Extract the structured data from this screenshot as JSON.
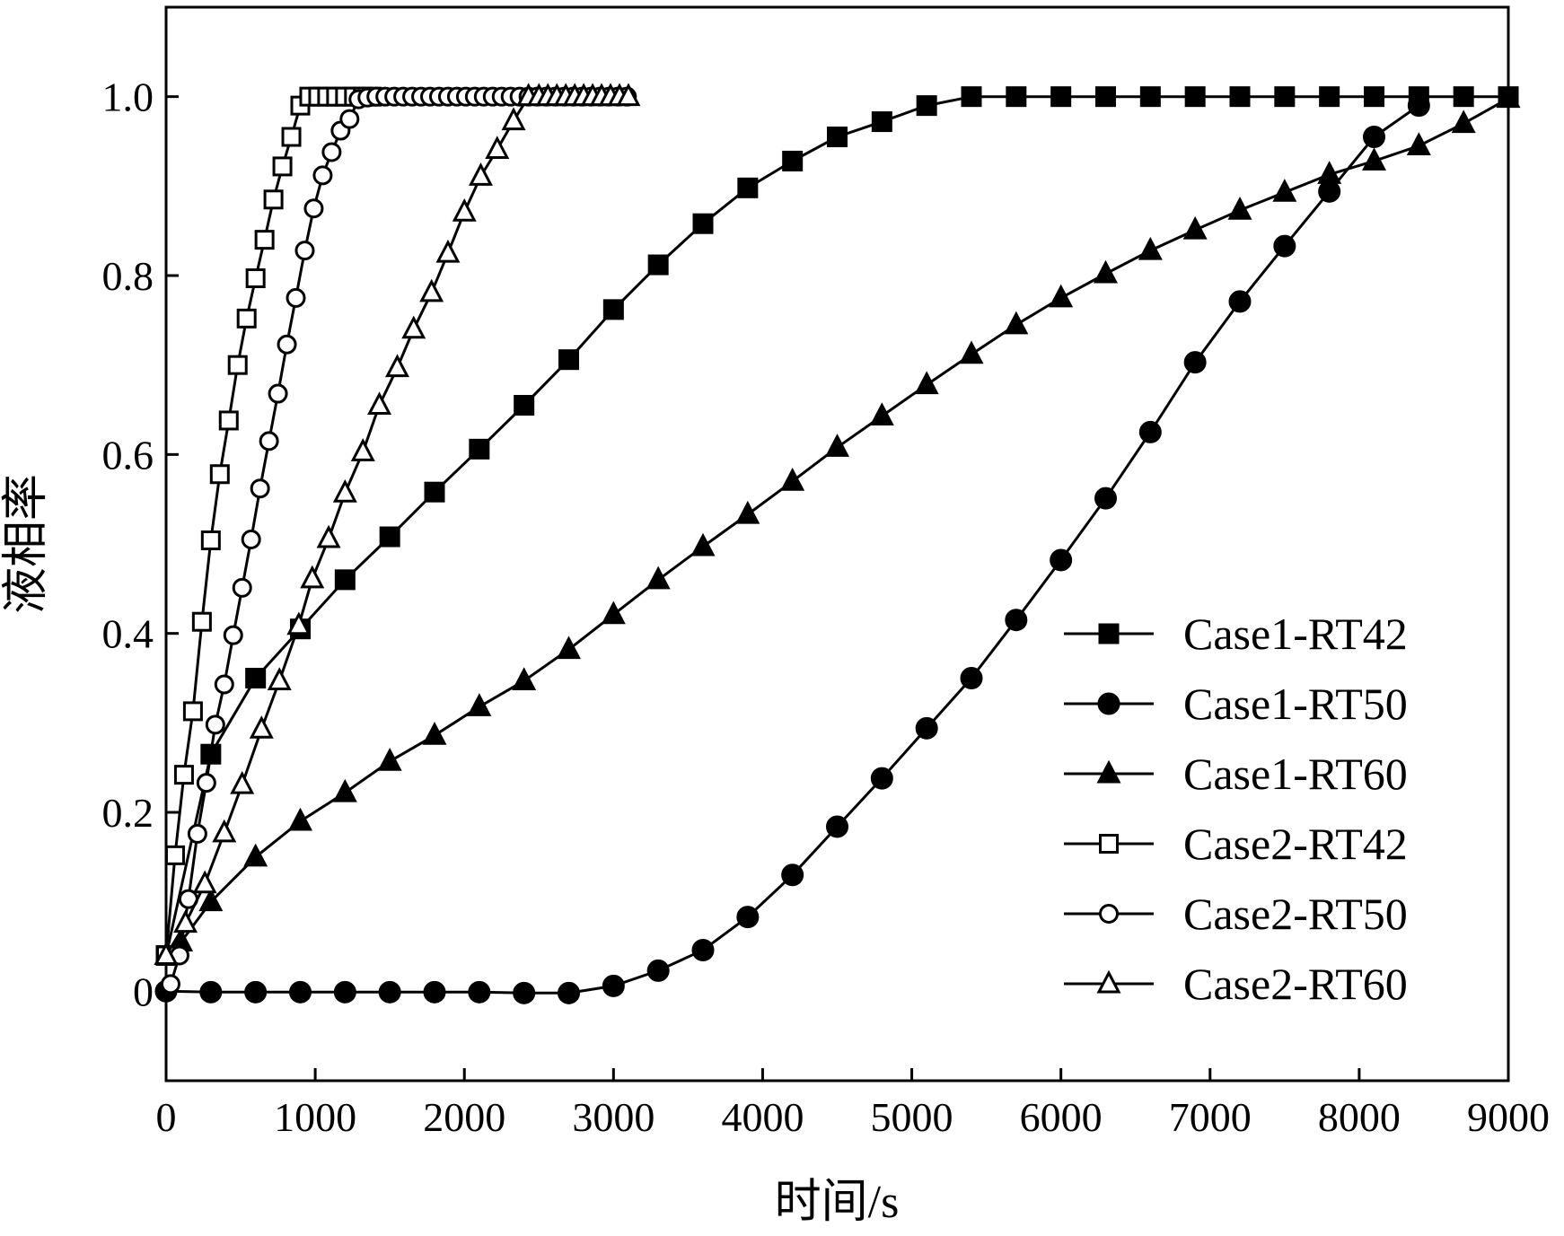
{
  "chart_data": {
    "type": "line",
    "xlabel": "时间/s",
    "ylabel": "液相率",
    "xlim": [
      0,
      9000
    ],
    "ylim": [
      -0.1,
      1.1
    ],
    "x_ticks": [
      0,
      1000,
      2000,
      3000,
      4000,
      5000,
      6000,
      7000,
      8000,
      9000
    ],
    "x_tick_labels": [
      "0",
      "1000",
      "2000",
      "3000",
      "4000",
      "5000",
      "6000",
      "7000",
      "8000",
      "9000"
    ],
    "y_ticks": [
      0,
      0.2,
      0.4,
      0.6,
      0.8,
      1.0
    ],
    "y_tick_labels": [
      "0",
      "0.2",
      "0.4",
      "0.6",
      "0.8",
      "1.0"
    ],
    "grid": false,
    "legend_position": "bottom-right",
    "series": [
      {
        "name": "Case1-RT42",
        "marker": "square-filled",
        "x": [
          0,
          300,
          600,
          900,
          1200,
          1500,
          1800,
          2100,
          2400,
          2700,
          3000,
          3300,
          3600,
          3900,
          4200,
          4500,
          4800,
          5100,
          5400,
          5700,
          6000,
          6300,
          6600,
          6900,
          7200,
          7500,
          7800,
          8100,
          8400,
          8700,
          9000
        ],
        "y": [
          0.04,
          0.265,
          0.35,
          0.405,
          0.46,
          0.508,
          0.558,
          0.606,
          0.655,
          0.706,
          0.762,
          0.812,
          0.858,
          0.898,
          0.928,
          0.955,
          0.972,
          0.99,
          1.0,
          1.0,
          1.0,
          1.0,
          1.0,
          1.0,
          1.0,
          1.0,
          1.0,
          1.0,
          1.0,
          1.0,
          1.0
        ]
      },
      {
        "name": "Case1-RT50",
        "marker": "circle-filled",
        "x": [
          0,
          300,
          600,
          900,
          1200,
          1500,
          1800,
          2100,
          2400,
          2700,
          3000,
          3300,
          3600,
          3900,
          4200,
          4500,
          4800,
          5100,
          5400,
          5700,
          6000,
          6300,
          6600,
          6900,
          7200,
          7500,
          7800,
          8100,
          8400
        ],
        "y": [
          0.0,
          -0.001,
          -0.001,
          -0.001,
          -0.001,
          -0.001,
          -0.001,
          -0.001,
          -0.002,
          -0.002,
          0.006,
          0.023,
          0.046,
          0.083,
          0.13,
          0.184,
          0.238,
          0.294,
          0.35,
          0.415,
          0.482,
          0.551,
          0.625,
          0.703,
          0.771,
          0.833,
          0.894,
          0.955,
          0.99
        ]
      },
      {
        "name": "Case1-RT60",
        "marker": "triangle-filled",
        "x": [
          0,
          100,
          300,
          600,
          900,
          1200,
          1500,
          1800,
          2100,
          2400,
          2700,
          3000,
          3300,
          3600,
          3900,
          4200,
          4500,
          4800,
          5100,
          5400,
          5700,
          6000,
          6300,
          6600,
          6900,
          7200,
          7500,
          7800,
          8100,
          8400,
          8700,
          9000
        ],
        "y": [
          0.04,
          0.055,
          0.1,
          0.15,
          0.19,
          0.222,
          0.257,
          0.286,
          0.318,
          0.347,
          0.382,
          0.421,
          0.46,
          0.497,
          0.533,
          0.57,
          0.608,
          0.643,
          0.678,
          0.712,
          0.745,
          0.775,
          0.802,
          0.828,
          0.851,
          0.873,
          0.893,
          0.913,
          0.928,
          0.945,
          0.97,
          0.998
        ]
      },
      {
        "name": "Case2-RT42",
        "marker": "square-open",
        "x": [
          0,
          60,
          120,
          180,
          240,
          300,
          360,
          420,
          480,
          540,
          600,
          660,
          720,
          780,
          840,
          900,
          960,
          1020,
          1080,
          1140,
          1200,
          1260,
          1320,
          1380
        ],
        "y": [
          0.04,
          0.152,
          0.242,
          0.313,
          0.413,
          0.504,
          0.578,
          0.638,
          0.7,
          0.752,
          0.797,
          0.84,
          0.885,
          0.922,
          0.955,
          0.99,
          1.0,
          1.0,
          1.0,
          1.0,
          1.0,
          1.0,
          1.0,
          1.0
        ]
      },
      {
        "name": "Case2-RT50",
        "marker": "circle-open",
        "x": [
          30,
          90,
          150,
          210,
          270,
          330,
          390,
          450,
          510,
          570,
          630,
          690,
          750,
          810,
          870,
          930,
          990,
          1050,
          1110,
          1170,
          1230,
          1290,
          1350,
          1410,
          1470,
          1530,
          1590,
          1650,
          1710,
          1770,
          1830,
          1890,
          1950,
          2010,
          2070,
          2130,
          2190,
          2250,
          2310,
          2370,
          2430,
          2490,
          2550,
          2610,
          2670,
          2730,
          2790,
          2850,
          2910,
          2970,
          3030,
          3090
        ],
        "y": [
          0.008,
          0.04,
          0.103,
          0.176,
          0.233,
          0.298,
          0.343,
          0.398,
          0.451,
          0.505,
          0.562,
          0.615,
          0.668,
          0.723,
          0.775,
          0.828,
          0.875,
          0.912,
          0.938,
          0.962,
          0.975,
          0.997,
          0.999,
          1.0,
          1.0,
          1.0,
          1.0,
          1.0,
          1.0,
          1.0,
          1.0,
          1.0,
          1.0,
          1.0,
          1.0,
          1.0,
          1.0,
          1.0,
          1.0,
          1.0,
          1.0,
          1.0,
          1.0,
          1.0,
          1.0,
          1.0,
          1.0,
          1.0,
          1.0,
          1.0,
          1.0,
          1.0
        ]
      },
      {
        "name": "Case2-RT60",
        "marker": "triangle-open",
        "x": [
          0,
          130,
          260,
          390,
          510,
          640,
          760,
          890,
          980,
          1090,
          1200,
          1320,
          1430,
          1550,
          1660,
          1780,
          1890,
          2000,
          2110,
          2220,
          2330,
          2430,
          2500,
          2560,
          2620,
          2680,
          2740,
          2800,
          2860,
          2920,
          2980,
          3040,
          3100
        ],
        "y": [
          0.04,
          0.076,
          0.12,
          0.177,
          0.231,
          0.293,
          0.347,
          0.409,
          0.461,
          0.506,
          0.557,
          0.603,
          0.655,
          0.697,
          0.74,
          0.781,
          0.825,
          0.871,
          0.911,
          0.941,
          0.973,
          1.0,
          1.0,
          1.0,
          1.0,
          1.0,
          1.0,
          1.0,
          1.0,
          1.0,
          1.0,
          1.0,
          1.0
        ]
      }
    ]
  }
}
